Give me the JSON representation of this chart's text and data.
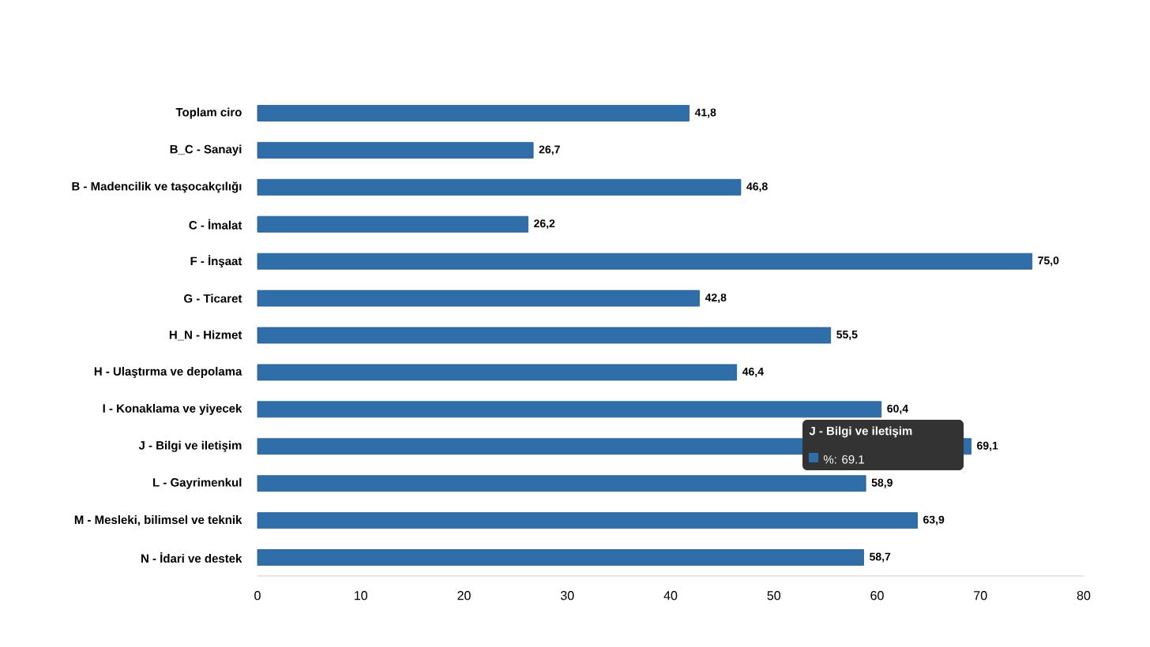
{
  "chart_data": {
    "type": "bar",
    "orientation": "horizontal",
    "categories": [
      "Toplam ciro",
      "B_C - Sanayi",
      "B - Madencilik ve taşocakçılığı",
      "C - İmalat",
      "F - İnşaat",
      "G - Ticaret",
      "H_N - Hizmet",
      "H - Ulaştırma ve depolama",
      "I - Konaklama ve yiyecek",
      "J - Bilgi ve iletişim",
      "L - Gayrimenkul",
      "M - Mesleki, bilimsel ve teknik",
      "N - İdari ve destek"
    ],
    "values": [
      41.8,
      26.7,
      46.8,
      26.2,
      75.0,
      42.8,
      55.5,
      46.4,
      60.4,
      69.1,
      58.9,
      63.9,
      58.7
    ],
    "value_labels": [
      "41,8",
      "26,7",
      "46,8",
      "26,2",
      "75,0",
      "42,8",
      "55,5",
      "46,4",
      "60,4",
      "69,1",
      "58,9",
      "63,9",
      "58,7"
    ],
    "color": "#2f6ea8",
    "xlim": [
      0,
      80
    ],
    "xticks": [
      0,
      10,
      20,
      30,
      40,
      50,
      60,
      70,
      80
    ],
    "grid": false,
    "annotations": [
      "J - Bilgi ve iletişim",
      "%: 69.1"
    ]
  }
}
